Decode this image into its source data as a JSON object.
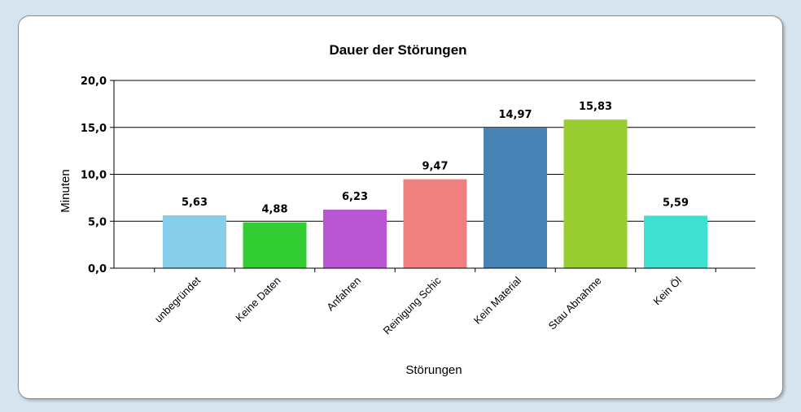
{
  "chart_data": {
    "type": "bar",
    "title": "Dauer der Störungen",
    "xlabel": "Störungen",
    "ylabel": "Minuten",
    "categories": [
      "unbegründet",
      "Keine Daten",
      "Anfahren",
      "Reinigung Schic",
      "Kein Material",
      "Stau Abnahme",
      "Kein Öl"
    ],
    "values": [
      5.63,
      4.88,
      6.23,
      9.47,
      14.97,
      15.83,
      5.59
    ],
    "value_labels": [
      "5,63",
      "4,88",
      "6,23",
      "9,47",
      "14,97",
      "15,83",
      "5,59"
    ],
    "colors": [
      "#87ceeb",
      "#32cd32",
      "#ba55d3",
      "#f08080",
      "#4682b4",
      "#9acd32",
      "#40e0d0"
    ],
    "ylim": [
      0,
      20
    ],
    "yticks": [
      0,
      5,
      10,
      15,
      20
    ],
    "ytick_labels": [
      "0,0",
      "5,0",
      "10,0",
      "15,0",
      "20,0"
    ],
    "grid": true,
    "legend": "none"
  }
}
